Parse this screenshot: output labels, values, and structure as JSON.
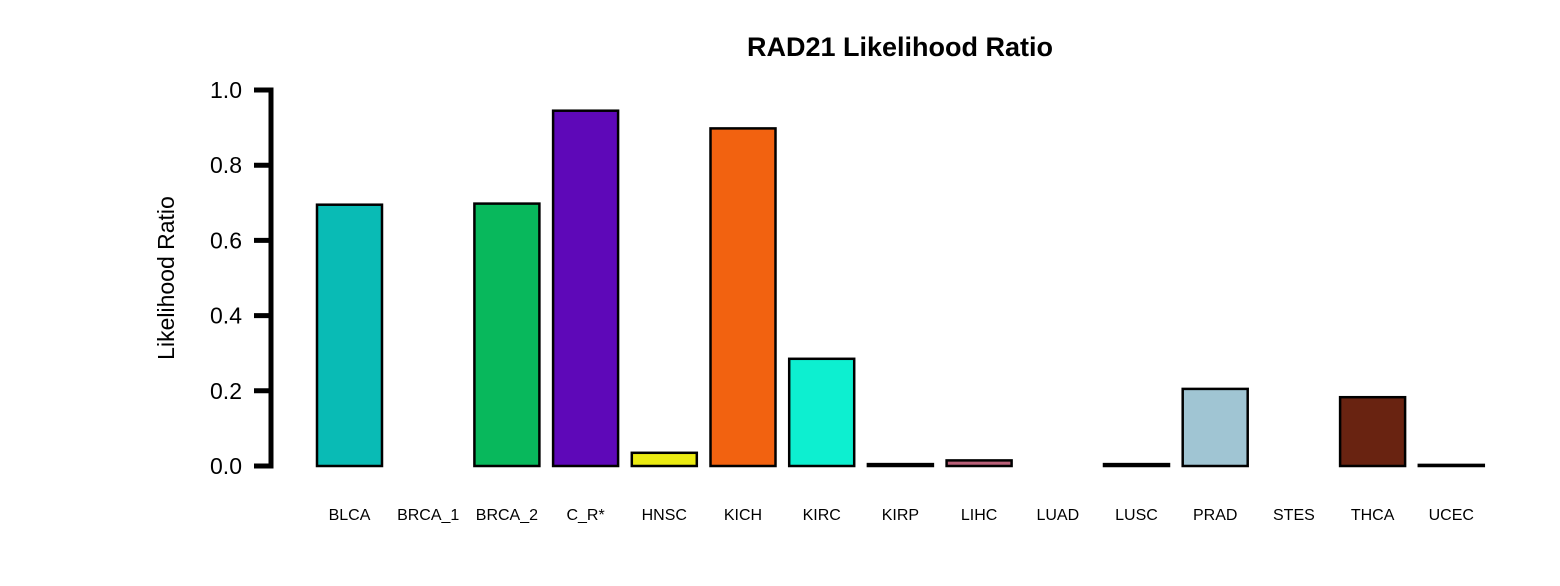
{
  "chart_data": {
    "type": "bar",
    "title": "RAD21 Likelihood Ratio",
    "xlabel": "",
    "ylabel": "Likelihood Ratio",
    "ylim": [
      0,
      1.0
    ],
    "yticks": [
      "0.0",
      "0.2",
      "0.4",
      "0.6",
      "0.8",
      "1.0"
    ],
    "grid": false,
    "categories": [
      "BLCA",
      "BRCA_1",
      "BRCA_2",
      "C_R*",
      "HNSC",
      "KICH",
      "KIRC",
      "KIRP",
      "LIHC",
      "LUAD",
      "LUSC",
      "PRAD",
      "STES",
      "THCA",
      "UCEC"
    ],
    "values": [
      0.695,
      0.0,
      0.698,
      0.945,
      0.035,
      0.898,
      0.285,
      0.005,
      0.015,
      0.0,
      0.005,
      0.205,
      0.0,
      0.183,
      0.003
    ],
    "colors": [
      "#09BBB5",
      "#1B1B1B",
      "#08B85C",
      "#5E08B8",
      "#EBEB12",
      "#F26210",
      "#0DEFD0",
      "#1F1F1F",
      "#B96078",
      "#222222",
      "#1A1A1A",
      "#A0C5D3",
      "#333333",
      "#692311",
      "#111111"
    ],
    "bar_border": "#000000"
  }
}
